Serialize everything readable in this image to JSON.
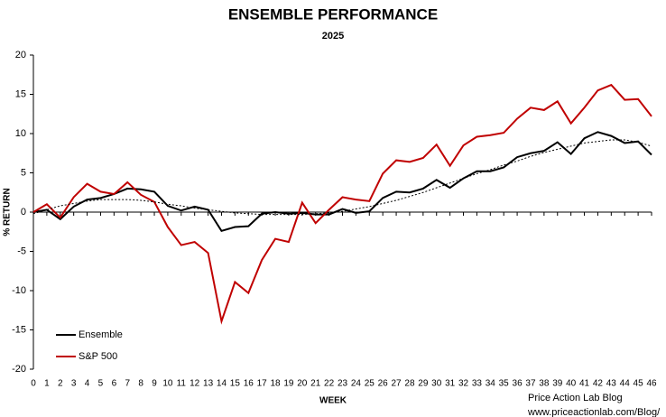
{
  "chart_data": {
    "type": "line",
    "title": "ENSEMBLE PERFORMANCE",
    "subtitle": "2025",
    "xlabel": "WEEK",
    "ylabel": "% RETURN",
    "annotations": [
      "Price Action Lab Blog",
      "www.priceactionlab.com/Blog/"
    ],
    "x": [
      0,
      1,
      2,
      3,
      4,
      5,
      6,
      7,
      8,
      9,
      10,
      11,
      12,
      13,
      14,
      15,
      16,
      17,
      18,
      19,
      20,
      21,
      22,
      23,
      24,
      25,
      26,
      27,
      28,
      29,
      30,
      31,
      32,
      33,
      34,
      35,
      36,
      37,
      38,
      39,
      40,
      41,
      42,
      43,
      44,
      45,
      46
    ],
    "series": [
      {
        "name": "Ensemble",
        "color": "#000000",
        "values": [
          0,
          0.3,
          -0.9,
          0.7,
          1.6,
          1.8,
          2.3,
          3.0,
          2.9,
          2.6,
          0.8,
          0.2,
          0.7,
          0.3,
          -2.4,
          -1.9,
          -1.8,
          -0.2,
          0,
          -0.2,
          -0.1,
          -0.3,
          -0.3,
          0.4,
          -0.1,
          0.1,
          1.8,
          2.6,
          2.5,
          3.0,
          4.1,
          3.1,
          4.3,
          5.2,
          5.2,
          5.7,
          7.0,
          7.5,
          7.8,
          8.9,
          7.4,
          9.4,
          10.2,
          9.7,
          8.8,
          9.0,
          7.3
        ]
      },
      {
        "name": "S&P 500",
        "color": "#c00000",
        "values": [
          0,
          1.0,
          -0.7,
          1.9,
          3.6,
          2.6,
          2.3,
          3.8,
          2.2,
          1.3,
          -1.9,
          -4.2,
          -3.8,
          -5.2,
          -13.9,
          -8.9,
          -10.3,
          -6.1,
          -3.4,
          -3.8,
          1.2,
          -1.4,
          0.3,
          1.9,
          1.6,
          1.4,
          4.9,
          6.6,
          6.4,
          6.9,
          8.6,
          5.9,
          8.5,
          9.6,
          9.8,
          10.1,
          11.9,
          13.3,
          13.0,
          14.1,
          11.3,
          13.3,
          15.5,
          16.2,
          14.3,
          14.4,
          12.2
        ]
      },
      {
        "color": "#000000",
        "dashed": true,
        "values": [
          -0.2,
          0.3,
          0.8,
          1.1,
          1.4,
          1.6,
          1.6,
          1.6,
          1.5,
          1.3,
          1.0,
          0.8,
          0.5,
          0.3,
          0.1,
          -0.1,
          -0.2,
          -0.3,
          -0.3,
          -0.3,
          -0.3,
          -0.2,
          -0.1,
          0.1,
          0.4,
          0.7,
          1.1,
          1.5,
          2.0,
          2.5,
          3.1,
          3.7,
          4.3,
          4.9,
          5.4,
          6.0,
          6.5,
          7.1,
          7.6,
          8.0,
          8.4,
          8.8,
          9.0,
          9.2,
          9.2,
          8.9,
          8.4
        ]
      }
    ],
    "xlim": [
      0,
      46
    ],
    "xticks": [
      0,
      1,
      2,
      3,
      4,
      5,
      6,
      7,
      8,
      9,
      10,
      11,
      12,
      13,
      14,
      15,
      16,
      17,
      18,
      19,
      20,
      21,
      22,
      23,
      24,
      25,
      26,
      27,
      28,
      29,
      30,
      31,
      32,
      33,
      34,
      35,
      36,
      37,
      38,
      39,
      40,
      41,
      42,
      43,
      44,
      45,
      46
    ],
    "ylim": [
      -20,
      20
    ],
    "yticks": [
      -20,
      -15,
      -10,
      -5,
      0,
      5,
      10,
      15,
      20
    ],
    "grid": false,
    "legend": "lower left"
  }
}
